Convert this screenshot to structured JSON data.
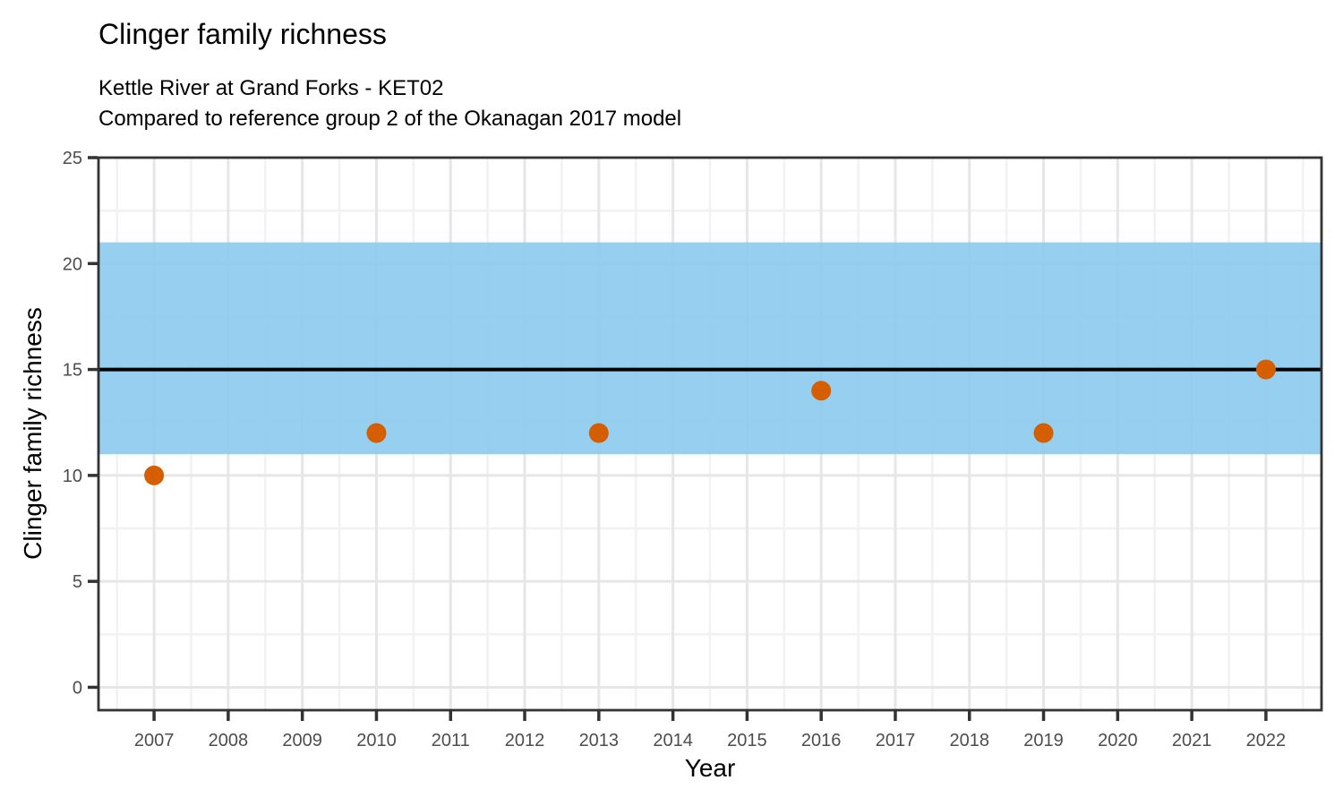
{
  "title": "Clinger family richness",
  "subtitle": [
    "Kettle River at Grand Forks - KET02",
    "Compared to reference group 2 of the Okanagan 2017 model"
  ],
  "chart_data": {
    "type": "scatter",
    "title": "Clinger family richness",
    "subtitle": "Kettle River at Grand Forks - KET02 / Compared to reference group 2 of the Okanagan 2017 model",
    "xlabel": "Year",
    "ylabel": "Clinger family richness",
    "points": [
      {
        "x": 2007,
        "y": 10
      },
      {
        "x": 2010,
        "y": 12
      },
      {
        "x": 2013,
        "y": 12
      },
      {
        "x": 2016,
        "y": 14
      },
      {
        "x": 2019,
        "y": 12
      },
      {
        "x": 2022,
        "y": 15
      }
    ],
    "reference_band": {
      "ymin": 11,
      "ymax": 21,
      "color": "#8BCAED",
      "opacity": 0.9
    },
    "reference_line": {
      "y": 15,
      "color": "#000000",
      "width": 4
    },
    "x_ticks": [
      2007,
      2008,
      2009,
      2010,
      2011,
      2012,
      2013,
      2014,
      2015,
      2016,
      2017,
      2018,
      2019,
      2020,
      2021,
      2022
    ],
    "y_ticks": [
      0,
      5,
      10,
      15,
      20,
      25
    ],
    "x_minor_step": 0.5,
    "y_minor_step": 2.5,
    "x_range": [
      2006.25,
      2022.75
    ],
    "y_range": [
      -1.08,
      25
    ],
    "grid": "on",
    "legend": "none",
    "point_color": "#D55E00",
    "point_radius": 11,
    "colors": {
      "major_grid": "#E6E6E6",
      "minor_grid": "#F2F2F2",
      "panel_border": "#333333",
      "tick_mark": "#333333",
      "tick_label": "#4D4D4D",
      "panel_background": "#FFFFFF"
    }
  }
}
